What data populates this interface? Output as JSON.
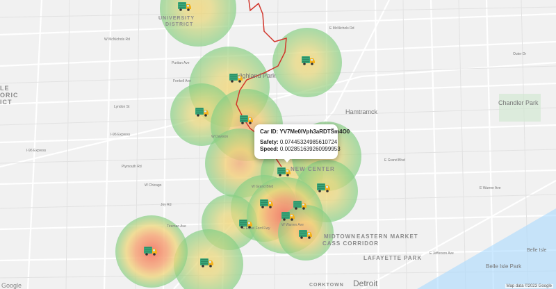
{
  "popup": {
    "car_label": "Car ID:",
    "car_id": "YV7Me0IVph3aRDTSm4O0",
    "safety_label": "Safety:",
    "safety_value": "0.07445324985610724",
    "speed_label": "Speed:",
    "speed_value": "0.002851639260999953",
    "close_glyph": "×"
  },
  "districts": {
    "university": "UNIVERSITY",
    "district": "DISTRICT",
    "highland_park": "Highland Park",
    "hamtramck": "Hamtramck",
    "chandler_park": "Chandler Park",
    "new_center": "NEW CENTER",
    "midtown": "MIDTOWN",
    "eastern_market": "EASTERN MARKET",
    "cass_corridor": "CASS CORRIDOR",
    "lafayette_park": "LAFAYETTE PARK",
    "corktown": "CORKTOWN",
    "detroit": "Detroit",
    "belle_isle": "Belle Isle",
    "belle_isle_park": "Belle Isle Park",
    "historic_left": "LE",
    "historic_left2": "ORIC",
    "historic_left3": "ICT"
  },
  "roads": {
    "i96_a": "I-96 Express",
    "i96_b": "I-96 Express",
    "w_mcnichols": "W McNichols Rd",
    "e_mcnichols": "E McNichols Rd",
    "w_grand": "W Grand Blvd",
    "e_grand": "E Grand Blvd",
    "w_chicago": "W Chicago",
    "e_warren": "E Warren Ave",
    "w_warren": "W Warren Ave",
    "e_jefferson": "E Jefferson Ave",
    "edsel_ford": "E Edsel Ford Fwy",
    "joy_rd": "Joy Rd",
    "tireman": "Tireman Ave",
    "puritan": "Puritan Ave",
    "fenkell": "Fenkell Ave",
    "lyndon": "Lyndon St",
    "plymouth": "Plymouth Rd",
    "w_davison": "W Davison",
    "outer_dr": "Outer Dr"
  },
  "attribution": "Map data ©2023 Google",
  "logo": "Google",
  "heat_colors": {
    "low": "#6cc46c",
    "mid": "#f3d36a",
    "high": "#f07a6a"
  },
  "route_color": "#d1352b",
  "truck_colors": {
    "cab": "#f5b21c",
    "box": "#3aa77a",
    "wheel": "#333333"
  }
}
